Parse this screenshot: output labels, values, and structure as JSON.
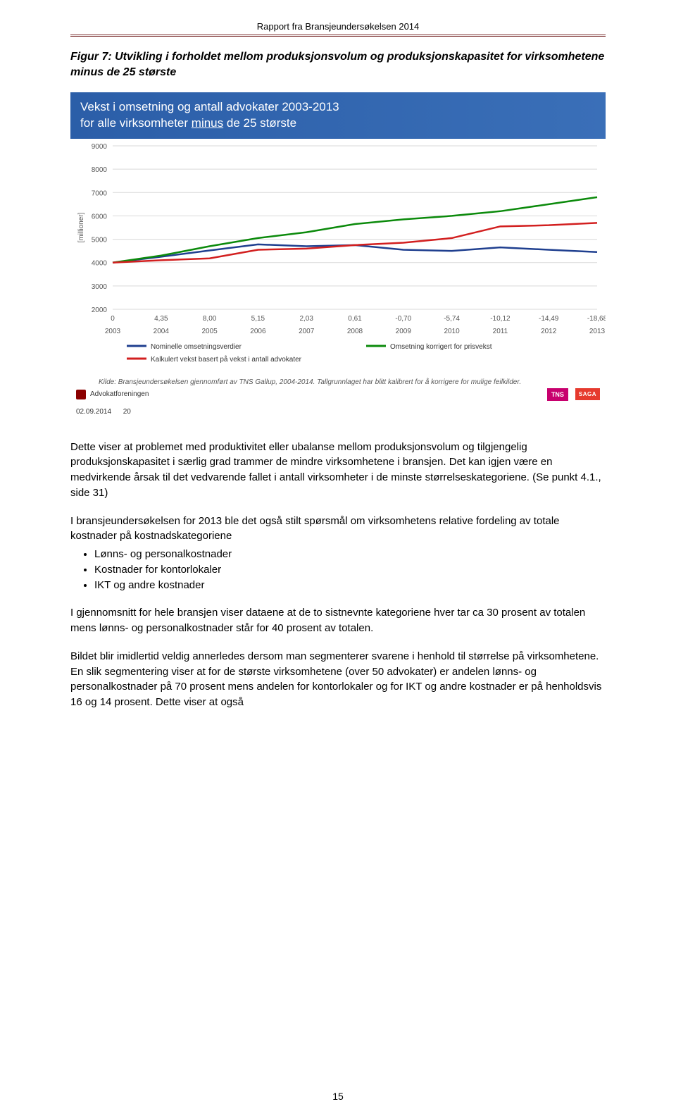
{
  "header": "Rapport fra Bransjeundersøkelsen 2014",
  "figure_title": "Figur 7: Utvikling i forholdet mellom produksjonsvolum og produksjonskapasitet for virksomhetene minus de 25 største",
  "chart": {
    "type": "line",
    "title_line1": "Vekst i omsetning og antall advokater 2003-2013",
    "title_line2_pre": "for alle virksomheter ",
    "title_line2_und": "minus",
    "title_line2_post": " de 25 største",
    "y_label": "[millioner]",
    "y_label_fontsize": 10,
    "years": [
      "2003",
      "2004",
      "2005",
      "2006",
      "2007",
      "2008",
      "2009",
      "2010",
      "2011",
      "2012",
      "2013"
    ],
    "diff_labels": [
      "0",
      "4,35",
      "8,00",
      "5,15",
      "2,03",
      "0,61",
      "-0,70",
      "-5,74",
      "-10,12",
      "-14,49",
      "-18,68"
    ],
    "ylim": [
      2000,
      9000
    ],
    "ytick_step": 1000,
    "xlim": [
      0,
      10
    ],
    "series": [
      {
        "name": "Nominelle omsetningsverdier",
        "color": "#1f3f8f",
        "width": 2.5,
        "values": [
          4000,
          4250,
          4520,
          4780,
          4700,
          4750,
          4550,
          4500,
          4650,
          4550,
          4450
        ]
      },
      {
        "name": "Omsetning korrigert for prisvekst",
        "color": "#0b8a0b",
        "width": 2.5,
        "values": [
          4000,
          4300,
          4700,
          5050,
          5300,
          5650,
          5850,
          6000,
          6200,
          6500,
          6800
        ]
      },
      {
        "name": "Kalkulert vekst basert på vekst i antall advokater",
        "color": "#d21f1f",
        "width": 2.5,
        "values": [
          4000,
          4100,
          4180,
          4550,
          4600,
          4750,
          4850,
          5050,
          5550,
          5600,
          5700
        ]
      }
    ],
    "grid_color": "#d9d9d9",
    "axis_color": "#808080",
    "background_color": "#ffffff",
    "tick_fontsize": 10,
    "legend_fontsize": 10,
    "source_note": "Kilde: Bransjeundersøkelsen gjennomført av TNS Gallup, 2004-2014. Tallgrunnlaget har blitt kalibrert for å korrigere for mulige feilkilder.",
    "advokat_label": "Advokatforeningen",
    "date_label": "02.09.2014",
    "page_ref": "20",
    "tns_label": "TNS",
    "saga_label": "SAGA"
  },
  "para1": "Dette viser at problemet med produktivitet eller ubalanse mellom produksjonsvolum og tilgjengelig produksjonskapasitet i særlig grad trammer de mindre virksomhetene i bransjen. Det kan igjen være en medvirkende årsak til det vedvarende fallet i antall virksomheter i de minste størrelseskategoriene. (Se punkt 4.1., side 31)",
  "para2_intro": "I bransjeundersøkelsen for 2013 ble det også stilt spørsmål om virksomhetens relative fordeling av totale kostnader på kostnadskategoriene",
  "bullets": [
    "Lønns- og personalkostnader",
    "Kostnader for kontorlokaler",
    "IKT og andre kostnader"
  ],
  "para3": "I gjennomsnitt for hele bransjen viser dataene at de to sistnevnte kategoriene hver tar ca 30 prosent av totalen mens lønns- og personalkostnader står for 40 prosent av totalen.",
  "para4": "Bildet blir imidlertid veldig annerledes dersom man segmenterer svarene i henhold til størrelse på virksomhetene. En slik segmentering viser at for de største virksomhetene (over 50 advokater) er andelen lønns- og personalkostnader på 70 prosent mens andelen for kontorlokaler og for IKT og andre kostnader er på henholdsvis 16 og 14 prosent. Dette viser at også",
  "page_number": "15"
}
